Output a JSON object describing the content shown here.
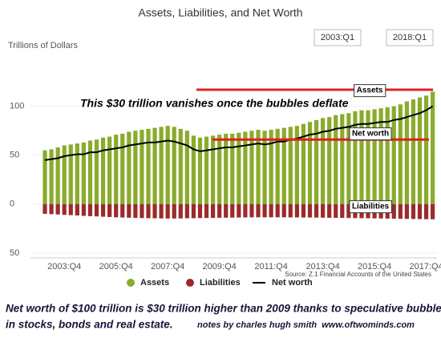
{
  "chart_data": {
    "type": "bar-line",
    "title": "Assets, Liabilities, and Net Worth",
    "y_label": "Trillions of Dollars",
    "range_selector": [
      "2003:Q1",
      "2018:Q1"
    ],
    "categories": [
      null,
      null,
      null,
      "2003:Q4",
      null,
      null,
      null,
      null,
      null,
      null,
      null,
      "2005:Q4",
      null,
      null,
      null,
      null,
      null,
      null,
      null,
      "2007:Q4",
      null,
      null,
      null,
      null,
      null,
      null,
      null,
      "2009:Q4",
      null,
      null,
      null,
      null,
      null,
      null,
      null,
      "2011:Q4",
      null,
      null,
      null,
      null,
      null,
      null,
      null,
      "2013:Q4",
      null,
      null,
      null,
      null,
      null,
      null,
      null,
      "2015:Q4",
      null,
      null,
      null,
      null,
      null,
      null,
      null,
      "2017:Q4",
      null
    ],
    "series": [
      {
        "name": "Assets",
        "kind": "bar",
        "color": "#8aab2c",
        "values": [
          55,
          56,
          58,
          60,
          61,
          62,
          63,
          65,
          66,
          68,
          69,
          71,
          72,
          74,
          75,
          76,
          77,
          78,
          79,
          80,
          79,
          77,
          75,
          70,
          68,
          69,
          70,
          71,
          72,
          72,
          73,
          74,
          75,
          76,
          75,
          76,
          77,
          78,
          79,
          80,
          82,
          84,
          86,
          88,
          89,
          91,
          92,
          93,
          95,
          96,
          96,
          97,
          98,
          99,
          100,
          102,
          105,
          107,
          109,
          111,
          115
        ]
      },
      {
        "name": "Liabilities",
        "kind": "bar",
        "color": "#9b2b2b",
        "values": [
          -10,
          -10.3,
          -10.6,
          -11,
          -11.3,
          -11.6,
          -12,
          -12.3,
          -12.6,
          -12.9,
          -13.2,
          -13.5,
          -13.7,
          -13.9,
          -14.1,
          -14.3,
          -14.4,
          -14.5,
          -14.6,
          -14.7,
          -14.7,
          -14.6,
          -14.5,
          -14.4,
          -14.3,
          -14.2,
          -14.1,
          -14,
          -13.9,
          -13.8,
          -13.7,
          -13.6,
          -13.5,
          -13.5,
          -13.5,
          -13.5,
          -13.5,
          -13.5,
          -13.6,
          -13.6,
          -13.7,
          -13.7,
          -13.8,
          -13.9,
          -14,
          -14,
          -14.1,
          -14.2,
          -14.3,
          -14.4,
          -14.5,
          -14.6,
          -14.7,
          -14.8,
          -14.9,
          -15,
          -15.1,
          -15.2,
          -15.3,
          -15.4,
          -15.5
        ]
      },
      {
        "name": "Net worth",
        "kind": "line",
        "color": "#000000",
        "values": [
          45,
          46,
          47,
          49,
          50,
          51,
          51,
          53,
          53,
          55,
          56,
          57,
          58,
          60,
          61,
          62,
          63,
          63,
          64,
          65,
          64,
          62,
          60,
          56,
          54,
          55,
          56,
          57,
          58,
          58,
          59,
          60,
          61,
          62,
          61,
          62,
          64,
          64,
          66,
          67,
          69,
          71,
          72,
          74,
          75,
          77,
          78,
          79,
          81,
          82,
          82,
          83,
          84,
          84,
          86,
          87,
          89,
          91,
          93,
          96,
          100
        ]
      }
    ],
    "ylim": [
      -55,
      135
    ],
    "yticks": [
      {
        "value": -50,
        "label": "50"
      },
      0,
      50,
      100
    ],
    "reference_lines": [
      117,
      66
    ],
    "reference_line_color": "#e02020",
    "annotations": [
      "This $30 trillion vanishes once the bubbles deflate",
      "Assets",
      "Net worth",
      "Liabilities"
    ],
    "source": "Source: Z.1 Financial Accounts of the United States"
  },
  "caption": [
    "Net worth of $100 trillion is $30 trillion higher than 2009 thanks to speculative bubbles",
    "in stocks, bonds and real estate."
  ],
  "notes": "notes by charles hugh smith  www.oftwominds.com"
}
